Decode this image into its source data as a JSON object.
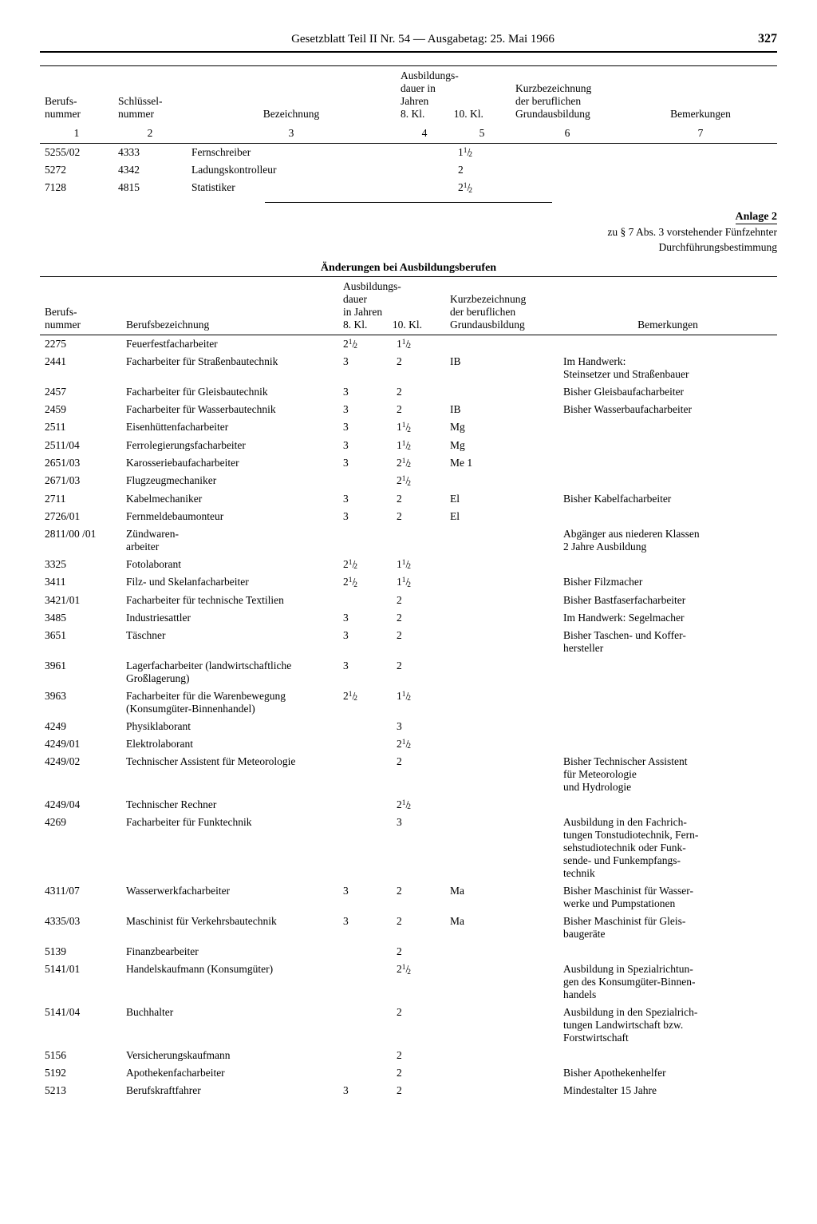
{
  "header": {
    "title": "Gesetzblatt Teil II Nr. 54 — Ausgabetag: 25. Mai 1966",
    "page": "327"
  },
  "table1": {
    "headers": {
      "berufs": "Berufs-\nnummer",
      "schl": "Schlüssel-\nnummer",
      "bez": "Bezeichnung",
      "ausb_top": "Ausbildungs-\ndauer in\nJahren",
      "d8": "8. Kl.",
      "d10": "10. Kl.",
      "kurz": "Kurzbezeichnung\nder beruflichen\nGrundausbildung",
      "bem": "Bemerkungen",
      "n1": "1",
      "n2": "2",
      "n3": "3",
      "n4": "4",
      "n5": "5",
      "n6": "6",
      "n7": "7"
    },
    "rows": [
      {
        "berufs": "5255/02",
        "schl": "4333",
        "bez": "Fernschreiber",
        "d8": "",
        "d10": "1½",
        "kurz": "",
        "bem": ""
      },
      {
        "berufs": "5272",
        "schl": "4342",
        "bez": "Ladungskontrolleur",
        "d8": "",
        "d10": "2",
        "kurz": "",
        "bem": ""
      },
      {
        "berufs": "7128",
        "schl": "4815",
        "bez": "Statistiker",
        "d8": "",
        "d10": "2½",
        "kurz": "",
        "bem": ""
      }
    ]
  },
  "anlage": {
    "title": "Anlage 2",
    "sub1": "zu § 7 Abs. 3 vorstehender Fünfzehnter",
    "sub2": "Durchführungsbestimmung"
  },
  "section_title": "Änderungen bei Ausbildungsberufen",
  "table2": {
    "headers": {
      "berufs": "Berufs-\nnummer",
      "bez": "Berufsbezeichnung",
      "ausb_top": "Ausbildungs-\ndauer\nin Jahren",
      "d8": "8. Kl.",
      "d10": "10. Kl.",
      "kurz": "Kurzbezeichnung\nder beruflichen\nGrundausbildung",
      "bem": "Bemerkungen"
    },
    "rows": [
      {
        "b": "2275",
        "bez": "Feuerfestfacharbeiter",
        "d8": "2½",
        "d10": "1½",
        "k": "",
        "bm": ""
      },
      {
        "b": "2441",
        "bez": "Facharbeiter für Straßenbautechnik",
        "d8": "3",
        "d10": "2",
        "k": "IB",
        "bm": "Im Handwerk:\nSteinsetzer und Straßenbauer"
      },
      {
        "b": "2457",
        "bez": "Facharbeiter für Gleisbautechnik",
        "d8": "3",
        "d10": "2",
        "k": "",
        "bm": "Bisher Gleisbaufacharbeiter"
      },
      {
        "b": "2459",
        "bez": "Facharbeiter für Wasserbautechnik",
        "d8": "3",
        "d10": "2",
        "k": "IB",
        "bm": "Bisher Wasserbaufacharbeiter"
      },
      {
        "b": "2511",
        "bez": "Eisenhüttenfacharbeiter",
        "d8": "3",
        "d10": "1½",
        "k": "Mg",
        "bm": ""
      },
      {
        "b": "2511/04",
        "bez": "Ferrolegierungsfacharbeiter",
        "d8": "3",
        "d10": "1½",
        "k": "Mg",
        "bm": ""
      },
      {
        "b": "2651/03",
        "bez": "Karosseriebaufacharbeiter",
        "d8": "3",
        "d10": "2½",
        "k": "Me 1",
        "bm": ""
      },
      {
        "b": "2671/03",
        "bez": "Flugzeugmechaniker",
        "d8": "",
        "d10": "2½",
        "k": "",
        "bm": ""
      },
      {
        "b": "2711",
        "bez": "Kabelmechaniker",
        "d8": "3",
        "d10": "2",
        "k": "El",
        "bm": "Bisher Kabelfacharbeiter"
      },
      {
        "b": "2726/01",
        "bez": "Fernmeldebaumonteur",
        "d8": "3",
        "d10": "2",
        "k": "El",
        "bm": ""
      },
      {
        "b": "2811/00 /01",
        "bez": "Zündwaren-\narbeiter",
        "d8": "",
        "d10": "",
        "k": "",
        "bm": "Abgänger aus niederen Klassen\n2 Jahre Ausbildung"
      },
      {
        "b": "3325",
        "bez": "Fotolaborant",
        "d8": "2½",
        "d10": "1½",
        "k": "",
        "bm": ""
      },
      {
        "b": "3411",
        "bez": "Filz- und Skelanfacharbeiter",
        "d8": "2½",
        "d10": "1½",
        "k": "",
        "bm": "Bisher Filzmacher"
      },
      {
        "b": "3421/01",
        "bez": "Facharbeiter für technische Textilien",
        "d8": "",
        "d10": "2",
        "k": "",
        "bm": "Bisher Bastfaserfacharbeiter"
      },
      {
        "b": "3485",
        "bez": "Industriesattler",
        "d8": "3",
        "d10": "2",
        "k": "",
        "bm": "Im Handwerk: Segelmacher"
      },
      {
        "b": "3651",
        "bez": "Täschner",
        "d8": "3",
        "d10": "2",
        "k": "",
        "bm": "Bisher Taschen- und Koffer-\nhersteller"
      },
      {
        "b": "3961",
        "bez": "Lagerfacharbeiter (landwirtschaftliche\nGroßlagerung)",
        "d8": "3",
        "d10": "2",
        "k": "",
        "bm": ""
      },
      {
        "b": "3963",
        "bez": "Facharbeiter für die Warenbewegung\n(Konsumgüter-Binnenhandel)",
        "d8": "2½",
        "d10": "1½",
        "k": "",
        "bm": ""
      },
      {
        "b": "4249",
        "bez": "Physiklaborant",
        "d8": "",
        "d10": "3",
        "k": "",
        "bm": ""
      },
      {
        "b": "4249/01",
        "bez": "Elektrolaborant",
        "d8": "",
        "d10": "2½",
        "k": "",
        "bm": ""
      },
      {
        "b": "4249/02",
        "bez": "Technischer Assistent für Meteorologie",
        "d8": "",
        "d10": "2",
        "k": "",
        "bm": "Bisher Technischer Assistent\nfür Meteorologie\nund Hydrologie"
      },
      {
        "b": "4249/04",
        "bez": "Technischer Rechner",
        "d8": "",
        "d10": "2½",
        "k": "",
        "bm": ""
      },
      {
        "b": "4269",
        "bez": "Facharbeiter für Funktechnik",
        "d8": "",
        "d10": "3",
        "k": "",
        "bm": "Ausbildung in den Fachrich-\ntungen Tonstudiotechnik, Fern-\nsehstudiotechnik oder Funk-\nsende- und Funkempfangs-\ntechnik"
      },
      {
        "b": "4311/07",
        "bez": "Wasserwerkfacharbeiter",
        "d8": "3",
        "d10": "2",
        "k": "Ma",
        "bm": "Bisher Maschinist für Wasser-\nwerke und Pumpstationen"
      },
      {
        "b": "4335/03",
        "bez": "Maschinist für Verkehrsbautechnik",
        "d8": "3",
        "d10": "2",
        "k": "Ma",
        "bm": "Bisher Maschinist für Gleis-\nbaugeräte"
      },
      {
        "b": "5139",
        "bez": "Finanzbearbeiter",
        "d8": "",
        "d10": "2",
        "k": "",
        "bm": ""
      },
      {
        "b": "5141/01",
        "bez": "Handelskaufmann (Konsumgüter)",
        "d8": "",
        "d10": "2½",
        "k": "",
        "bm": "Ausbildung in Spezialrichtun-\ngen des Konsumgüter-Binnen-\nhandels"
      },
      {
        "b": "5141/04",
        "bez": "Buchhalter",
        "d8": "",
        "d10": "2",
        "k": "",
        "bm": "Ausbildung in den Spezialrich-\ntungen Landwirtschaft bzw.\nForstwirtschaft"
      },
      {
        "b": "5156",
        "bez": "Versicherungskaufmann",
        "d8": "",
        "d10": "2",
        "k": "",
        "bm": ""
      },
      {
        "b": "5192",
        "bez": "Apothekenfacharbeiter",
        "d8": "",
        "d10": "2",
        "k": "",
        "bm": "Bisher Apothekenhelfer"
      },
      {
        "b": "5213",
        "bez": "Berufskraftfahrer",
        "d8": "3",
        "d10": "2",
        "k": "",
        "bm": "Mindestalter 15 Jahre"
      }
    ]
  }
}
